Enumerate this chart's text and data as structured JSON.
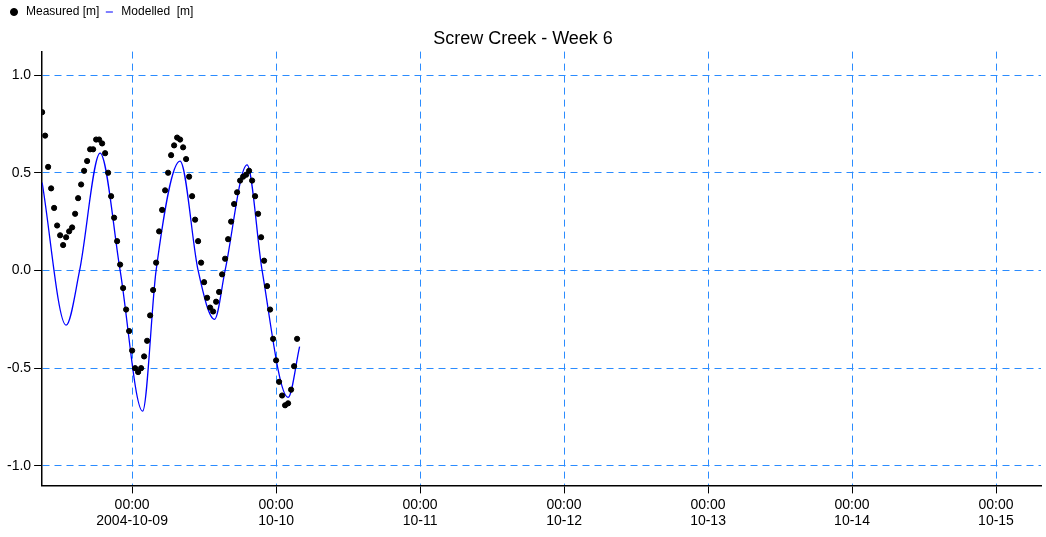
{
  "chart_data": {
    "type": "line",
    "title": "Screw Creek - Week 6",
    "legend": "top left",
    "grid": true,
    "xlim": [
      "2004-10-08T09:00",
      "2004-10-15T07:30"
    ],
    "xticks": [
      {
        "value": "2004-10-09",
        "label": "00:00 2004-10-09"
      },
      {
        "value": "2004-10-10",
        "label": "00:00 10-10"
      },
      {
        "value": "2004-10-11",
        "label": "00:00 10-11"
      },
      {
        "value": "2004-10-12",
        "label": "00:00 10-12"
      },
      {
        "value": "2004-10-13",
        "label": "00:00 10-13"
      },
      {
        "value": "2004-10-14",
        "label": "00:00 10-14"
      },
      {
        "value": "2004-10-15",
        "label": "00:00 10-15"
      }
    ],
    "ylim": [
      -1.1,
      1.12
    ],
    "yticks": [
      {
        "value": -1,
        "label": "-1.0"
      },
      {
        "value": -0.5,
        "label": "-0.5"
      },
      {
        "value": 0,
        "label": "0.0"
      },
      {
        "value": 0.5,
        "label": "0.5"
      },
      {
        "value": 1,
        "label": "1.0"
      }
    ],
    "series": [
      {
        "name": "Measured [m]",
        "type": "scatter",
        "marker": "circle",
        "color": "#000000",
        "x": [
          "2004-10-08T09:00",
          "2004-10-08T09:30",
          "2004-10-08T10:00",
          "2004-10-08T10:30",
          "2004-10-08T11:00",
          "2004-10-08T11:30",
          "2004-10-08T12:00",
          "2004-10-08T12:30",
          "2004-10-08T13:00",
          "2004-10-08T13:30",
          "2004-10-08T14:00",
          "2004-10-08T14:30",
          "2004-10-08T15:00",
          "2004-10-08T15:30",
          "2004-10-08T16:00",
          "2004-10-08T16:30",
          "2004-10-08T17:00",
          "2004-10-08T17:30",
          "2004-10-08T18:00",
          "2004-10-08T18:30",
          "2004-10-08T19:00",
          "2004-10-08T19:30",
          "2004-10-08T20:00",
          "2004-10-08T20:30",
          "2004-10-08T21:00",
          "2004-10-08T21:30",
          "2004-10-08T22:00",
          "2004-10-08T22:30",
          "2004-10-08T23:00",
          "2004-10-08T23:30",
          "2004-10-09T00:00",
          "2004-10-09T00:30",
          "2004-10-09T01:00",
          "2004-10-09T01:30",
          "2004-10-09T02:00",
          "2004-10-09T02:30",
          "2004-10-09T03:00",
          "2004-10-09T03:30",
          "2004-10-09T04:00",
          "2004-10-09T04:30",
          "2004-10-09T05:00",
          "2004-10-09T05:30",
          "2004-10-09T06:00",
          "2004-10-09T06:30",
          "2004-10-09T07:00",
          "2004-10-09T07:30",
          "2004-10-09T08:00",
          "2004-10-09T08:30",
          "2004-10-09T09:00",
          "2004-10-09T09:30",
          "2004-10-09T10:00",
          "2004-10-09T10:30",
          "2004-10-09T11:00",
          "2004-10-09T11:30",
          "2004-10-09T12:00",
          "2004-10-09T12:30",
          "2004-10-09T13:00",
          "2004-10-09T13:30",
          "2004-10-09T14:00",
          "2004-10-09T14:30",
          "2004-10-09T15:00",
          "2004-10-09T15:30",
          "2004-10-09T16:00",
          "2004-10-09T16:30",
          "2004-10-09T17:00",
          "2004-10-09T17:30",
          "2004-10-09T18:00",
          "2004-10-09T18:30",
          "2004-10-09T19:00",
          "2004-10-09T19:30",
          "2004-10-09T20:00",
          "2004-10-09T20:30",
          "2004-10-09T21:00",
          "2004-10-09T21:30",
          "2004-10-09T22:00",
          "2004-10-09T22:30",
          "2004-10-09T23:00",
          "2004-10-09T23:30",
          "2004-10-10T00:00",
          "2004-10-10T00:30",
          "2004-10-10T01:00",
          "2004-10-10T01:30",
          "2004-10-10T02:00",
          "2004-10-10T02:30",
          "2004-10-10T03:00",
          "2004-10-10T03:30"
        ],
        "values": [
          0.81,
          0.69,
          0.53,
          0.42,
          0.32,
          0.23,
          0.18,
          0.13,
          0.17,
          0.2,
          0.22,
          0.29,
          0.37,
          0.44,
          0.51,
          0.56,
          0.62,
          0.62,
          0.67,
          0.67,
          0.65,
          0.6,
          0.5,
          0.38,
          0.27,
          0.15,
          0.03,
          -0.09,
          -0.2,
          -0.31,
          -0.41,
          -0.5,
          -0.52,
          -0.5,
          -0.44,
          -0.36,
          -0.23,
          -0.1,
          0.04,
          0.2,
          0.31,
          0.41,
          0.5,
          0.59,
          0.64,
          0.68,
          0.67,
          0.63,
          0.57,
          0.48,
          0.38,
          0.26,
          0.15,
          0.04,
          -0.06,
          -0.14,
          -0.19,
          -0.21,
          -0.16,
          -0.11,
          -0.02,
          0.06,
          0.16,
          0.25,
          0.34,
          0.4,
          0.46,
          0.48,
          0.49,
          0.51,
          0.46,
          0.38,
          0.29,
          0.17,
          0.05,
          -0.08,
          -0.2,
          -0.35,
          -0.46,
          -0.57,
          -0.64,
          -0.69,
          -0.68,
          -0.61,
          -0.49,
          -0.35
        ]
      },
      {
        "name": "Modelled  [m]",
        "type": "line",
        "marker": "none",
        "line_style": "solid",
        "color": "#0000ff",
        "x": [
          "2004-10-08T09:00",
          "2004-10-08T13:00",
          "2004-10-08T15:15",
          "2004-10-08T18:40",
          "2004-10-08T22:00",
          "2004-10-09T01:45",
          "2004-10-09T04:00",
          "2004-10-09T08:00",
          "2004-10-09T11:00",
          "2004-10-09T13:45",
          "2004-10-09T15:30",
          "2004-10-09T19:10",
          "2004-10-09T21:40",
          "2004-10-10T02:00",
          "2004-10-10T03:55"
        ],
        "values": [
          0.45,
          -0.28,
          0,
          0.6,
          0,
          -0.72,
          0,
          0.56,
          0,
          -0.25,
          0,
          0.54,
          0,
          -0.65,
          -0.39
        ]
      }
    ]
  }
}
